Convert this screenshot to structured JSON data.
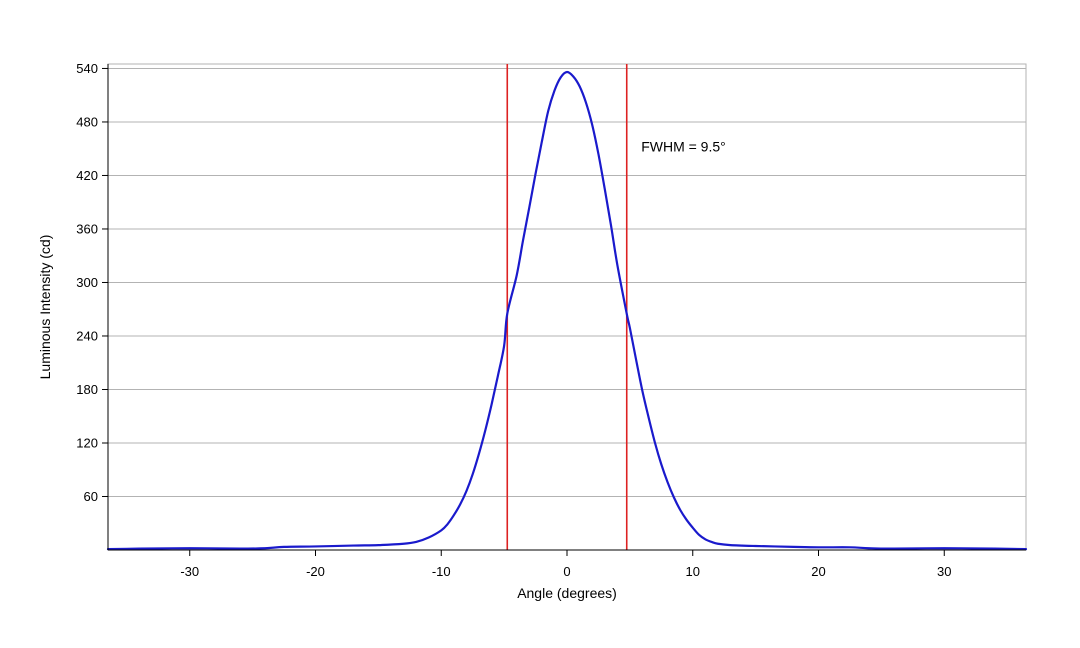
{
  "chart_data": {
    "type": "line",
    "title": "",
    "xlabel": "Angle (degrees)",
    "ylabel": "Luminous Intensity (cd)",
    "xlim": [
      -36.5,
      36.5
    ],
    "ylim": [
      0,
      545
    ],
    "x_ticks": [
      -30,
      -20,
      -10,
      0,
      10,
      20,
      30
    ],
    "y_ticks": [
      60,
      120,
      180,
      240,
      300,
      360,
      420,
      480,
      540
    ],
    "grid": "horizontal",
    "legend": "none",
    "series": [
      {
        "color": "#1a1acc",
        "points": [
          [
            -36.5,
            1
          ],
          [
            -34,
            1.5
          ],
          [
            -30,
            2
          ],
          [
            -26,
            1.5
          ],
          [
            -24,
            2
          ],
          [
            -22.5,
            3.5
          ],
          [
            -20,
            4
          ],
          [
            -17,
            5
          ],
          [
            -15,
            5.5
          ],
          [
            -13,
            7
          ],
          [
            -12,
            9
          ],
          [
            -11,
            14
          ],
          [
            -10,
            22
          ],
          [
            -9.5,
            29
          ],
          [
            -9,
            39
          ],
          [
            -8.5,
            51
          ],
          [
            -8,
            66
          ],
          [
            -7.5,
            85
          ],
          [
            -7,
            108
          ],
          [
            -6.5,
            134
          ],
          [
            -6,
            163
          ],
          [
            -5.5,
            195
          ],
          [
            -5,
            229
          ],
          [
            -4.75,
            265
          ],
          [
            -4,
            308
          ],
          [
            -3.5,
            347
          ],
          [
            -3,
            384
          ],
          [
            -2.5,
            422
          ],
          [
            -2,
            458
          ],
          [
            -1.5,
            492
          ],
          [
            -1,
            515
          ],
          [
            -0.5,
            530
          ],
          [
            0,
            536
          ],
          [
            0.5,
            531
          ],
          [
            1,
            520
          ],
          [
            1.5,
            502
          ],
          [
            2,
            477
          ],
          [
            2.5,
            444
          ],
          [
            3,
            405
          ],
          [
            3.5,
            364
          ],
          [
            4,
            320
          ],
          [
            4.75,
            265
          ],
          [
            5,
            249
          ],
          [
            5.5,
            213
          ],
          [
            6,
            178
          ],
          [
            6.5,
            148
          ],
          [
            7,
            120
          ],
          [
            7.5,
            96
          ],
          [
            8,
            76
          ],
          [
            8.5,
            59
          ],
          [
            9,
            45
          ],
          [
            9.5,
            34
          ],
          [
            10,
            25
          ],
          [
            10.5,
            17
          ],
          [
            11,
            12
          ],
          [
            11.5,
            9
          ],
          [
            12,
            7
          ],
          [
            13,
            5.5
          ],
          [
            15,
            4.5
          ],
          [
            18,
            3.5
          ],
          [
            20,
            3
          ],
          [
            22.5,
            3
          ],
          [
            24,
            2
          ],
          [
            26,
            1.5
          ],
          [
            30,
            2
          ],
          [
            34,
            1.5
          ],
          [
            36.5,
            1
          ]
        ]
      }
    ],
    "fwhm_lines": {
      "x": [
        -4.75,
        4.75
      ],
      "color": "#dd2222"
    },
    "annotations": [
      {
        "text": "FWHM = 9.5°",
        "x": 5.9,
        "y": 447
      }
    ],
    "colors": {
      "grid": "#b3b3b3",
      "frame": "#b3b3b3",
      "axis": "#000000"
    }
  }
}
